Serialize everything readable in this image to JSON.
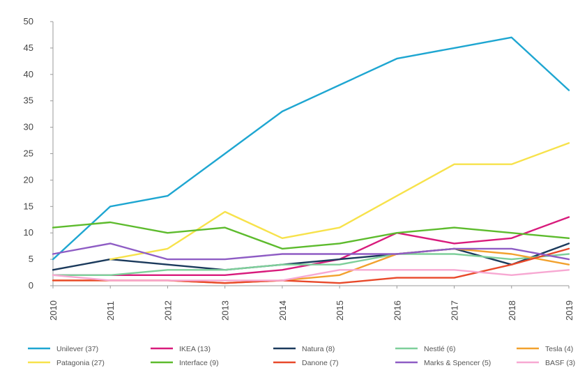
{
  "chart_data": {
    "type": "line",
    "x": [
      "2010",
      "2011",
      "2012",
      "2013",
      "2014",
      "2015",
      "2016",
      "2017",
      "2018",
      "2019"
    ],
    "ylim": [
      0,
      50
    ],
    "y_ticks": [
      "0",
      "5",
      "10",
      "15",
      "20",
      "25",
      "30",
      "35",
      "40",
      "45",
      "50"
    ],
    "grid": false,
    "legend_position": "bottom",
    "series": [
      {
        "name": "Unilever (37)",
        "color": "#1EA6D1",
        "values": [
          5,
          15,
          17,
          25,
          33,
          38,
          43,
          45,
          47,
          37
        ]
      },
      {
        "name": "IKEA (13)",
        "color": "#D81B7C",
        "values": [
          2,
          2,
          2,
          2,
          3,
          5,
          10,
          8,
          9,
          13
        ]
      },
      {
        "name": "Natura (8)",
        "color": "#1B3A5C",
        "values": [
          3,
          5,
          4,
          3,
          4,
          5,
          6,
          7,
          4,
          8
        ]
      },
      {
        "name": "Nestlé (6)",
        "color": "#7ECF9A",
        "values": [
          2,
          2,
          3,
          3,
          4,
          4,
          6,
          6,
          5,
          6
        ]
      },
      {
        "name": "Tesla (4)",
        "color": "#F2A12E",
        "values": [
          1,
          1,
          1,
          0.5,
          1,
          2,
          6,
          7,
          6,
          4
        ]
      },
      {
        "name": "Patagonia (27)",
        "color": "#F7E24B",
        "values": [
          null,
          5,
          7,
          14,
          9,
          11,
          17,
          23,
          23,
          27
        ]
      },
      {
        "name": "Interface (9)",
        "color": "#5DBB2D",
        "values": [
          11,
          12,
          10,
          11,
          7,
          8,
          10,
          11,
          10,
          9
        ]
      },
      {
        "name": "Danone (7)",
        "color": "#E8492A",
        "values": [
          1,
          1,
          1,
          0.5,
          1,
          0.5,
          1.5,
          1.5,
          4,
          7
        ]
      },
      {
        "name": "Marks & Spencer (5)",
        "color": "#8E5CC4",
        "values": [
          6,
          8,
          5,
          5,
          6,
          6,
          6,
          7,
          7,
          5
        ]
      },
      {
        "name": "BASF (3)",
        "color": "#F7A8D2",
        "values": [
          2,
          1,
          1,
          1,
          1,
          3,
          3,
          3,
          2,
          3
        ]
      }
    ]
  }
}
